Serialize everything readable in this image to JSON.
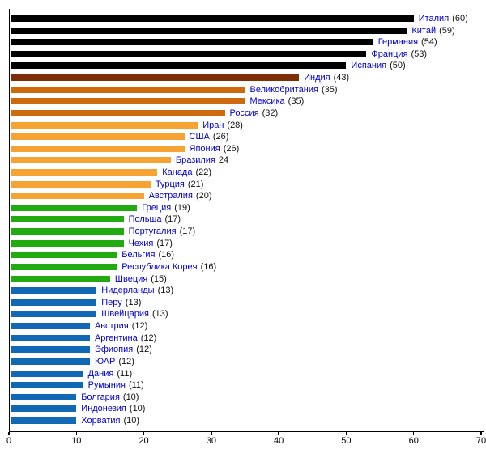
{
  "chart_data": {
    "type": "bar",
    "orientation": "horizontal",
    "title": "",
    "xlabel": "",
    "ylabel": "",
    "xlim": [
      0,
      70
    ],
    "x_ticks": [
      "0",
      "10",
      "20",
      "30",
      "40",
      "50",
      "60",
      "70"
    ],
    "grid": false,
    "legend": null,
    "label_color": "#0000CC",
    "value_color": "#111111",
    "color_map": {
      "black": "#000000",
      "dark_brown": "#7E2F08",
      "chocolate": "#CE6A0E",
      "orange": "#F5A333",
      "green": "#22AA11",
      "blue": "#1169B5"
    },
    "rows": [
      {
        "name": "Италия",
        "value": 60,
        "value_label": "(60)",
        "color_key": "black"
      },
      {
        "name": "Китай",
        "value": 59,
        "value_label": "(59)",
        "color_key": "black"
      },
      {
        "name": "Германия",
        "value": 54,
        "value_label": "(54)",
        "color_key": "black"
      },
      {
        "name": "Франция",
        "value": 53,
        "value_label": "(53)",
        "color_key": "black"
      },
      {
        "name": "Испания",
        "value": 50,
        "value_label": "(50)",
        "color_key": "black"
      },
      {
        "name": "Индия",
        "value": 43,
        "value_label": "(43)",
        "color_key": "dark_brown"
      },
      {
        "name": "Великобритания",
        "value": 35,
        "value_label": "(35)",
        "color_key": "chocolate"
      },
      {
        "name": "Мексика",
        "value": 35,
        "value_label": "(35)",
        "color_key": "chocolate"
      },
      {
        "name": "Россия",
        "value": 32,
        "value_label": "(32)",
        "color_key": "chocolate"
      },
      {
        "name": "Иран",
        "value": 28,
        "value_label": "(28)",
        "color_key": "orange"
      },
      {
        "name": "США",
        "value": 26,
        "value_label": "(26)",
        "color_key": "orange"
      },
      {
        "name": "Япония",
        "value": 26,
        "value_label": "(26)",
        "color_key": "orange"
      },
      {
        "name": "Бразилия",
        "value": 24,
        "value_label": "24",
        "color_key": "orange"
      },
      {
        "name": "Канада",
        "value": 22,
        "value_label": "(22)",
        "color_key": "orange"
      },
      {
        "name": "Турция",
        "value": 21,
        "value_label": "(21)",
        "color_key": "orange"
      },
      {
        "name": "Австралия",
        "value": 20,
        "value_label": "(20)",
        "color_key": "orange"
      },
      {
        "name": "Греция",
        "value": 19,
        "value_label": "(19)",
        "color_key": "green"
      },
      {
        "name": "Польша",
        "value": 17,
        "value_label": "(17)",
        "color_key": "green"
      },
      {
        "name": "Португалия",
        "value": 17,
        "value_label": "(17)",
        "color_key": "green"
      },
      {
        "name": "Чехия",
        "value": 17,
        "value_label": "(17)",
        "color_key": "green"
      },
      {
        "name": "Бельгия",
        "value": 16,
        "value_label": "(16)",
        "color_key": "green"
      },
      {
        "name": "Республика Корея",
        "value": 16,
        "value_label": "(16)",
        "color_key": "green"
      },
      {
        "name": "Швеция",
        "value": 15,
        "value_label": "(15)",
        "color_key": "green"
      },
      {
        "name": "Нидерланды",
        "value": 13,
        "value_label": "(13)",
        "color_key": "blue"
      },
      {
        "name": "Перу",
        "value": 13,
        "value_label": "(13)",
        "color_key": "blue"
      },
      {
        "name": "Швейцария",
        "value": 13,
        "value_label": "(13)",
        "color_key": "blue"
      },
      {
        "name": "Австрия",
        "value": 12,
        "value_label": "(12)",
        "color_key": "blue"
      },
      {
        "name": "Аргентина",
        "value": 12,
        "value_label": "(12)",
        "color_key": "blue"
      },
      {
        "name": "Эфиопия",
        "value": 12,
        "value_label": "(12)",
        "color_key": "blue"
      },
      {
        "name": "ЮАР",
        "value": 12,
        "value_label": "(12)",
        "color_key": "blue"
      },
      {
        "name": "Дания",
        "value": 11,
        "value_label": "(11)",
        "color_key": "blue"
      },
      {
        "name": "Румыния",
        "value": 11,
        "value_label": "(11)",
        "color_key": "blue"
      },
      {
        "name": "Болгария",
        "value": 10,
        "value_label": "(10)",
        "color_key": "blue"
      },
      {
        "name": "Индонезия",
        "value": 10,
        "value_label": "(10)",
        "color_key": "blue"
      },
      {
        "name": "Хорватия",
        "value": 10,
        "value_label": "(10)",
        "color_key": "blue"
      }
    ]
  }
}
